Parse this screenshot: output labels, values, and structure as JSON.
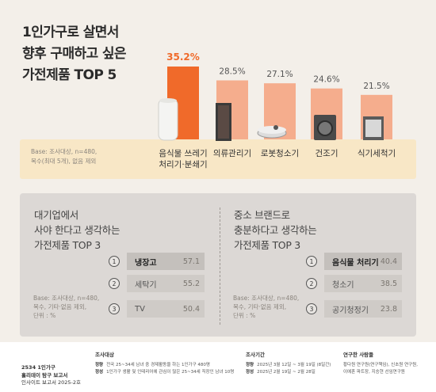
{
  "headline": {
    "line1": "1인가구로 살면서",
    "line2": "향후 구매하고 싶은",
    "line3": "가전제품 TOP 5"
  },
  "chart_data": {
    "type": "bar",
    "categories": [
      "음식물 쓰레기\n처리기·분쇄기",
      "의류관리기",
      "로봇청소기",
      "건조기",
      "식기세척기"
    ],
    "values": [
      35.2,
      28.5,
      27.1,
      24.6,
      21.5
    ],
    "value_labels": [
      "35.2%",
      "28.5%",
      "27.1%",
      "24.6%",
      "21.5%"
    ],
    "highlight_color": "#f06a2a",
    "bar_color": "#f5ad8d",
    "ylim": [
      0,
      40
    ]
  },
  "base_top": {
    "line1": "Base: 조사대상, n=480,",
    "line2": "복수(최대 5개), 없음 제외"
  },
  "panel_left": {
    "title1": "대기업에서",
    "title2": "사야 한다고 생각하는",
    "title3": "가전제품 TOP 3",
    "base1": "Base: 조사대상, n=480,",
    "base2": "복수, 기타·없음 제외,",
    "base3": "단위 : %",
    "ranks": [
      {
        "num": "1",
        "label": "냉장고",
        "value": "57.1"
      },
      {
        "num": "2",
        "label": "세탁기",
        "value": "55.2"
      },
      {
        "num": "3",
        "label": "TV",
        "value": "50.4"
      }
    ]
  },
  "panel_right": {
    "title1": "중소 브랜드로",
    "title2": "충분하다고 생각하는",
    "title3": "가전제품 TOP 3",
    "base1": "Base: 조사대상, n=480,",
    "base2": "복수, 기타·없음 제외,",
    "base3": "단위 : %",
    "ranks": [
      {
        "num": "1",
        "label": "음식물 처리기",
        "value": "40.4"
      },
      {
        "num": "2",
        "label": "청소기",
        "value": "38.5"
      },
      {
        "num": "3",
        "label": "공기청정기",
        "value": "23.8"
      }
    ]
  },
  "footer": {
    "title1": "2534 1인가구",
    "title2": "홀리데이 탐구 보고서",
    "title3": "인사이트 보고서 2025-2호",
    "col1_head": "조사대상",
    "col1_rows": [
      {
        "label": "정량",
        "text": "전국 25~34세 남녀 중 경제활동을 하는 1인가구 480명"
      },
      {
        "label": "정성",
        "text": "1인가구 생활 및 인테리어에 관심이 많은 25~34세 직장인 남녀 10명"
      }
    ],
    "col2_head": "조사기간",
    "col2_rows": [
      {
        "label": "정량",
        "text": "2025년 3월 12일 ~ 3월 19일 (8일간)"
      },
      {
        "label": "정성",
        "text": "2025년 2월 19일 ~ 2월 28일"
      }
    ],
    "col3_head": "연구한 사람들",
    "col3_rows": [
      {
        "text": "황다원 연구원(연구책임), 신초원 연구원,"
      },
      {
        "text": "이예혼 파트장, 지승현 선임연구원"
      }
    ]
  }
}
